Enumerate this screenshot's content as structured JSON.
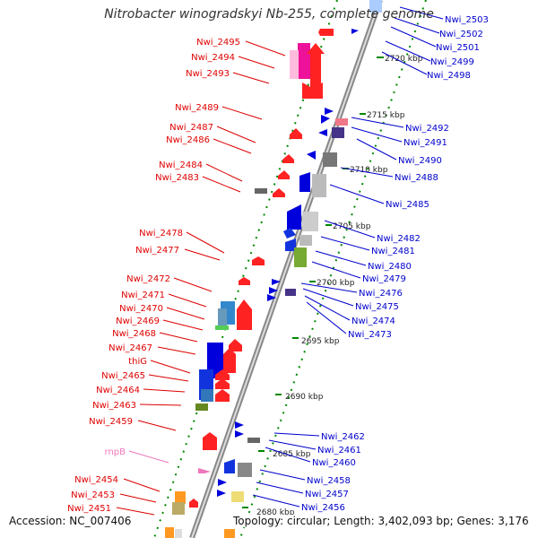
{
  "title": "Nitrobacter winogradskyi Nb-255, complete genome",
  "footer": {
    "accession": "Accession: NC_007406",
    "summary": "Topology: circular; Length: 3,402,093 bp; Genes: 3,176"
  },
  "colors": {
    "left_label": "#e00000",
    "right_label": "#0000cc",
    "rna_label": "#ee77bb",
    "backbone": "#888888",
    "tick_dots": "#008800",
    "kbp_text": "#222222"
  },
  "kbp_labels": [
    "2720 kbp",
    "2715 kbp",
    "2710 kbp",
    "2705 kbp",
    "2700 kbp",
    "2695 kbp",
    "2690 kbp",
    "2685 kbp",
    "2680 kbp"
  ],
  "left_labels": [
    "Nwi_2495",
    "Nwi_2494",
    "Nwi_2493",
    "Nwi_2489",
    "Nwi_2487",
    "Nwi_2486",
    "Nwi_2484",
    "Nwi_2483",
    "Nwi_2478",
    "Nwi_2477",
    "Nwi_2472",
    "Nwi_2471",
    "Nwi_2470",
    "Nwi_2469",
    "Nwi_2468",
    "Nwi_2467",
    "thiG",
    "Nwi_2465",
    "Nwi_2464",
    "Nwi_2463",
    "Nwi_2459",
    "rnpB",
    "Nwi_2454",
    "Nwi_2453",
    "Nwi_2451"
  ],
  "right_labels": [
    "Nwi_2503",
    "Nwi_2502",
    "Nwi_2501",
    "Nwi_2499",
    "Nwi_2498",
    "Nwi_2492",
    "Nwi_2491",
    "Nwi_2490",
    "Nwi_2488",
    "Nwi_2485",
    "Nwi_2482",
    "Nwi_2481",
    "Nwi_2480",
    "Nwi_2479",
    "Nwi_2476",
    "Nwi_2475",
    "Nwi_2474",
    "Nwi_2473",
    "Nwi_2462",
    "Nwi_2461",
    "Nwi_2460",
    "Nwi_2458",
    "Nwi_2457",
    "Nwi_2456"
  ]
}
